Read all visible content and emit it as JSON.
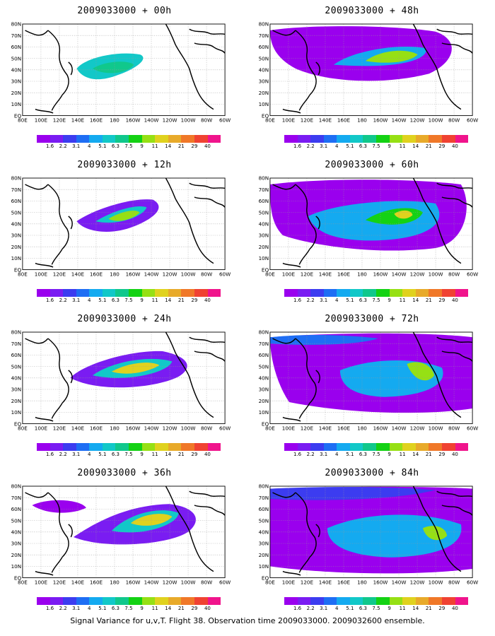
{
  "panels": [
    {
      "title": "2009033000 + 00h",
      "col": 0,
      "row": 0,
      "level": 0
    },
    {
      "title": "2009033000 + 12h",
      "col": 0,
      "row": 1,
      "level": 1
    },
    {
      "title": "2009033000 + 24h",
      "col": 0,
      "row": 2,
      "level": 2
    },
    {
      "title": "2009033000 + 36h",
      "col": 0,
      "row": 3,
      "level": 3
    },
    {
      "title": "2009033000 + 48h",
      "col": 1,
      "row": 0,
      "level": 4
    },
    {
      "title": "2009033000 + 60h",
      "col": 1,
      "row": 1,
      "level": 5
    },
    {
      "title": "2009033000 + 72h",
      "col": 1,
      "row": 2,
      "level": 6
    },
    {
      "title": "2009033000 + 84h",
      "col": 1,
      "row": 3,
      "level": 7
    }
  ],
  "lon_labels": [
    "80E",
    "100E",
    "120E",
    "140E",
    "160E",
    "180",
    "160W",
    "140W",
    "120W",
    "100W",
    "80W",
    "60W"
  ],
  "lat_labels": [
    "80N",
    "70N",
    "60N",
    "50N",
    "40N",
    "30N",
    "20N",
    "10N",
    "EQ"
  ],
  "colorbar": {
    "labels": [
      "1.6",
      "2.2",
      "3.1",
      "4",
      "5.1",
      "6.3",
      "7.5",
      "9",
      "11",
      "14",
      "21",
      "29",
      "40"
    ],
    "colors": [
      "#9a00ee",
      "#7a1cf2",
      "#3c3cf0",
      "#1e6ef4",
      "#14aaf0",
      "#12c8c8",
      "#10c88c",
      "#14d214",
      "#96e014",
      "#e0d21e",
      "#e8aa2a",
      "#f07828",
      "#f04232",
      "#f0148c"
    ]
  },
  "caption": "Signal Variance for u,v,T. Flight 38. Observation time 2009033000. 2009032600 ensemble."
}
